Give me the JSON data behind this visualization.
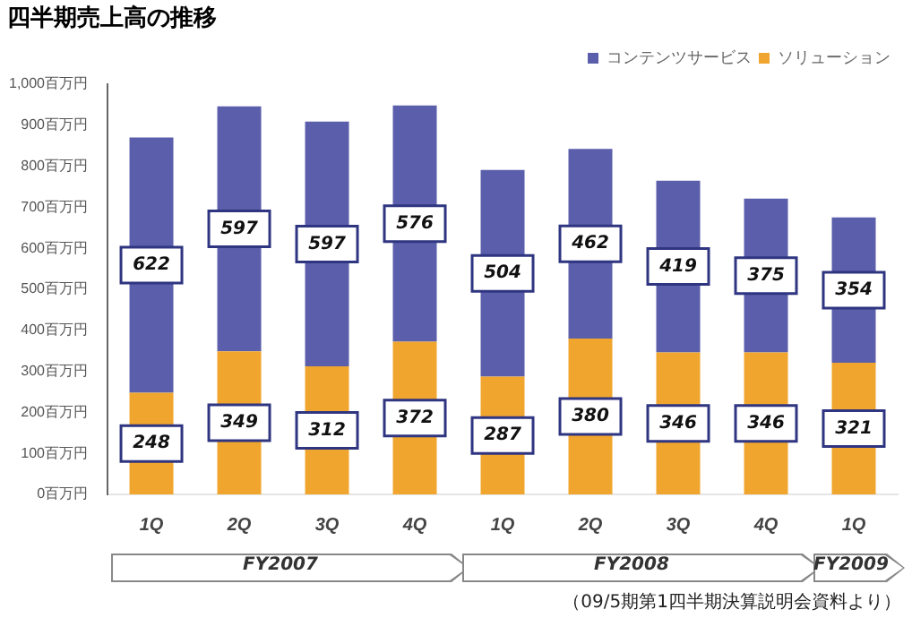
{
  "chart_data": {
    "type": "bar",
    "title": "四半期売上高の推移",
    "stacked": true,
    "data_labels": true,
    "legend": "top right",
    "grid": false,
    "categories": [
      "1Q",
      "2Q",
      "3Q",
      "4Q",
      "1Q",
      "2Q",
      "3Q",
      "4Q",
      "1Q"
    ],
    "series": [
      {
        "name": "ソリューション",
        "color": "#f0a62e",
        "values": [
          248,
          349,
          312,
          372,
          287,
          380,
          346,
          346,
          321
        ]
      },
      {
        "name": "コンテンツサービス",
        "color": "#5b5fab",
        "values": [
          622,
          597,
          597,
          576,
          504,
          462,
          419,
          375,
          354
        ]
      }
    ],
    "ylim": [
      0,
      1000
    ],
    "yticks": [
      {
        "value": 0,
        "label": "0百万円"
      },
      {
        "value": 100,
        "label": "100百万円"
      },
      {
        "value": 200,
        "label": "200百万円"
      },
      {
        "value": 300,
        "label": "300百万円"
      },
      {
        "value": 400,
        "label": "400百万円"
      },
      {
        "value": 500,
        "label": "500百万円"
      },
      {
        "value": 600,
        "label": "600百万円"
      },
      {
        "value": 700,
        "label": "700百万円"
      },
      {
        "value": 800,
        "label": "800百万円"
      },
      {
        "value": 900,
        "label": "900百万円"
      },
      {
        "value": 1000,
        "label": "1,000百万円"
      }
    ],
    "annotations": [
      "FY2007",
      "FY2008",
      "FY2009",
      "（09/5期第1四半期決算説明会資料より）"
    ]
  }
}
